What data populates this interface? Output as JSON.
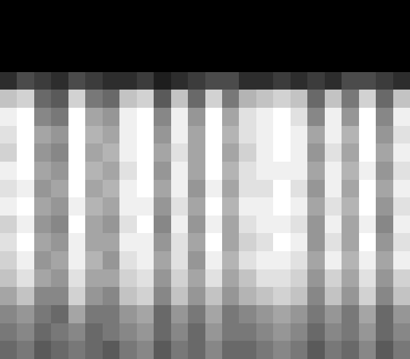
{
  "chart_data": {
    "type": "heatmap",
    "color": "#ffffff",
    "tick_labels": false,
    "grid": false,
    "cells": [
      [
        0.05,
        0.05,
        0.05,
        0.05,
        0.05,
        0.05,
        0.05,
        0.05,
        0.05,
        0.05,
        0.05,
        0.05,
        0.05,
        0.05,
        0.05,
        0.05,
        0.05,
        0.05,
        0.05,
        0.05,
        0.05,
        0.05,
        0.05,
        0.05
      ],
      [
        0.05,
        0.05,
        0.05,
        0.05,
        0.05,
        0.05,
        0.05,
        0.05,
        0.05,
        0.05,
        0.05,
        0.05,
        0.05,
        0.05,
        0.05,
        0.05,
        0.05,
        0.05,
        0.05,
        0.05,
        0.05,
        0.05,
        0.05,
        0.05
      ],
      [
        0.05,
        0.05,
        0.05,
        0.05,
        0.05,
        0.05,
        0.05,
        0.05,
        0.05,
        0.05,
        0.05,
        0.05,
        0.05,
        0.05,
        0.05,
        0.05,
        0.05,
        0.05,
        0.05,
        0.05,
        0.05,
        0.05,
        0.05,
        0.05
      ],
      [
        0.05,
        0.05,
        0.05,
        0.05,
        0.05,
        0.05,
        0.05,
        0.05,
        0.05,
        0.05,
        0.05,
        0.05,
        0.05,
        0.05,
        0.05,
        0.05,
        0.05,
        0.05,
        0.05,
        0.05,
        0.05,
        0.05,
        0.05,
        0.05
      ],
      [
        0.2,
        0.3,
        0.25,
        0.2,
        0.3,
        0.25,
        0.2,
        0.2,
        0.25,
        0.15,
        0.2,
        0.25,
        0.3,
        0.3,
        0.2,
        0.2,
        0.25,
        0.2,
        0.25,
        0.2,
        0.3,
        0.3,
        0.25,
        0.2
      ],
      [
        0.7,
        0.75,
        0.4,
        0.35,
        0.75,
        0.45,
        0.4,
        0.7,
        0.75,
        0.35,
        0.7,
        0.4,
        0.75,
        0.45,
        0.65,
        0.7,
        0.75,
        0.7,
        0.4,
        0.7,
        0.45,
        0.75,
        0.4,
        0.7
      ],
      [
        0.85,
        0.9,
        0.5,
        0.45,
        0.9,
        0.6,
        0.55,
        0.85,
        0.9,
        0.5,
        0.85,
        0.55,
        0.9,
        0.6,
        0.8,
        0.85,
        0.9,
        0.8,
        0.5,
        0.85,
        0.55,
        0.9,
        0.5,
        0.85
      ],
      [
        0.8,
        0.9,
        0.6,
        0.55,
        0.9,
        0.65,
        0.6,
        0.85,
        0.9,
        0.55,
        0.85,
        0.6,
        0.9,
        0.65,
        0.8,
        0.85,
        0.9,
        0.85,
        0.6,
        0.85,
        0.65,
        0.9,
        0.55,
        0.8
      ],
      [
        0.75,
        0.9,
        0.55,
        0.5,
        0.9,
        0.6,
        0.65,
        0.85,
        0.9,
        0.6,
        0.8,
        0.6,
        0.9,
        0.6,
        0.75,
        0.85,
        0.9,
        0.85,
        0.55,
        0.8,
        0.6,
        0.9,
        0.6,
        0.85
      ],
      [
        0.85,
        0.9,
        0.6,
        0.55,
        0.9,
        0.65,
        0.6,
        0.8,
        0.9,
        0.55,
        0.85,
        0.6,
        0.9,
        0.65,
        0.8,
        0.85,
        0.85,
        0.85,
        0.6,
        0.85,
        0.65,
        0.85,
        0.55,
        0.8
      ],
      [
        0.8,
        0.85,
        0.55,
        0.6,
        0.9,
        0.6,
        0.65,
        0.85,
        0.9,
        0.6,
        0.85,
        0.55,
        0.85,
        0.6,
        0.8,
        0.8,
        0.9,
        0.8,
        0.55,
        0.85,
        0.6,
        0.9,
        0.6,
        0.85
      ],
      [
        0.85,
        0.9,
        0.6,
        0.55,
        0.85,
        0.65,
        0.6,
        0.85,
        0.85,
        0.55,
        0.8,
        0.6,
        0.9,
        0.65,
        0.85,
        0.85,
        0.9,
        0.85,
        0.6,
        0.8,
        0.65,
        0.9,
        0.55,
        0.8
      ],
      [
        0.75,
        0.85,
        0.55,
        0.5,
        0.9,
        0.6,
        0.55,
        0.8,
        0.9,
        0.5,
        0.85,
        0.55,
        0.85,
        0.6,
        0.8,
        0.85,
        0.85,
        0.8,
        0.55,
        0.85,
        0.6,
        0.85,
        0.5,
        0.85
      ],
      [
        0.8,
        0.9,
        0.6,
        0.55,
        0.85,
        0.6,
        0.6,
        0.85,
        0.85,
        0.55,
        0.8,
        0.6,
        0.9,
        0.6,
        0.75,
        0.8,
        0.9,
        0.85,
        0.55,
        0.8,
        0.6,
        0.9,
        0.55,
        0.8
      ],
      [
        0.75,
        0.85,
        0.55,
        0.6,
        0.85,
        0.65,
        0.55,
        0.8,
        0.85,
        0.6,
        0.8,
        0.55,
        0.85,
        0.65,
        0.8,
        0.85,
        0.85,
        0.8,
        0.6,
        0.85,
        0.65,
        0.85,
        0.6,
        0.85
      ],
      [
        0.7,
        0.8,
        0.6,
        0.55,
        0.8,
        0.6,
        0.6,
        0.75,
        0.8,
        0.55,
        0.75,
        0.6,
        0.8,
        0.6,
        0.7,
        0.8,
        0.8,
        0.75,
        0.55,
        0.75,
        0.6,
        0.8,
        0.55,
        0.75
      ],
      [
        0.6,
        0.7,
        0.5,
        0.5,
        0.75,
        0.55,
        0.5,
        0.7,
        0.75,
        0.5,
        0.7,
        0.55,
        0.7,
        0.55,
        0.65,
        0.7,
        0.75,
        0.7,
        0.5,
        0.7,
        0.55,
        0.75,
        0.5,
        0.7
      ],
      [
        0.5,
        0.55,
        0.45,
        0.4,
        0.6,
        0.45,
        0.45,
        0.55,
        0.6,
        0.4,
        0.55,
        0.45,
        0.6,
        0.45,
        0.5,
        0.55,
        0.6,
        0.55,
        0.45,
        0.55,
        0.45,
        0.6,
        0.4,
        0.55
      ],
      [
        0.45,
        0.5,
        0.4,
        0.45,
        0.5,
        0.4,
        0.45,
        0.5,
        0.55,
        0.4,
        0.5,
        0.4,
        0.55,
        0.45,
        0.45,
        0.5,
        0.55,
        0.5,
        0.4,
        0.5,
        0.45,
        0.55,
        0.4,
        0.5
      ],
      [
        0.4,
        0.45,
        0.35,
        0.4,
        0.45,
        0.4,
        0.35,
        0.45,
        0.5,
        0.35,
        0.45,
        0.4,
        0.5,
        0.4,
        0.4,
        0.45,
        0.5,
        0.45,
        0.35,
        0.45,
        0.4,
        0.5,
        0.35,
        0.45
      ]
    ]
  }
}
